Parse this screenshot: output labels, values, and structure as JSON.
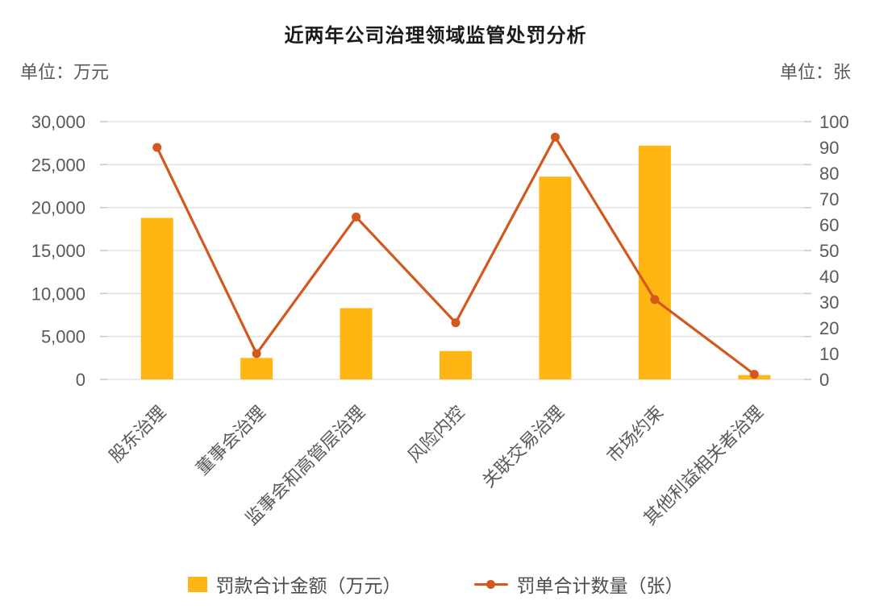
{
  "title": "近两年公司治理领域监管处罚分析",
  "colors": {
    "bar": "#FFB612",
    "line": "#D4581E",
    "grid": "#E3E3E3",
    "tick": "#C9C9C9",
    "axis_text": "#595959",
    "title_text": "#1A1A1A",
    "legend_text": "#4D4D4D"
  },
  "legend": [
    {
      "label": "罚款合计金额（万元）",
      "marker": "bar-swatch"
    },
    {
      "label": "罚单合计数量（张）",
      "marker": "line-dot-marker"
    }
  ],
  "chart_data": {
    "type": "combo-bar-line",
    "title": "近两年公司治理领域监管处罚分析",
    "categories": [
      "股东治理",
      "董事会治理",
      "监事会和高管层治理",
      "风险内控",
      "关联交易治理",
      "市场约束",
      "其他利益相关者治理"
    ],
    "series": [
      {
        "name": "罚款合计金额（万元）",
        "type": "bar",
        "axis": "left",
        "values": [
          18800,
          2500,
          8300,
          3300,
          23600,
          27200,
          500
        ]
      },
      {
        "name": "罚单合计数量（张）",
        "type": "line",
        "axis": "right",
        "values": [
          90,
          10,
          63,
          22,
          94,
          31,
          2
        ]
      }
    ],
    "left_axis": {
      "unit": "单位：万元",
      "min": 0,
      "max": 30000,
      "step": 5000,
      "tick_labels": [
        "0",
        "5,000",
        "10,000",
        "15,000",
        "20,000",
        "25,000",
        "30,000"
      ]
    },
    "right_axis": {
      "unit": "单位：张",
      "min": 0,
      "max": 100,
      "step": 10,
      "tick_labels": [
        "0",
        "10",
        "20",
        "30",
        "40",
        "50",
        "60",
        "70",
        "80",
        "90",
        "100"
      ]
    },
    "grid": true,
    "legend_position": "bottom"
  }
}
